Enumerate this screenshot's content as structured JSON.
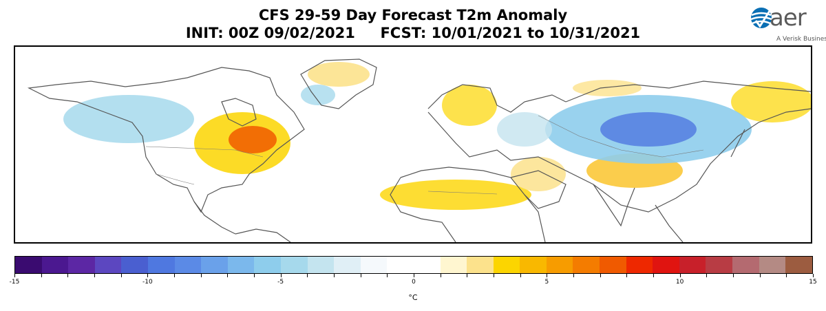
{
  "header": {
    "title_line1": "CFS 29-59 Day Forecast T2m Anomaly",
    "title_line2": "INIT: 00Z 09/02/2021     FCST: 10/01/2021 to 10/31/2021"
  },
  "logo": {
    "wordmark": "aer",
    "tagline": "A Verisk Business",
    "color": "#0a6fb4"
  },
  "colorbar": {
    "unit": "°C",
    "min": -15,
    "max": 15,
    "step": 1,
    "tick_labels": [
      "-15",
      "-10",
      "-5",
      "0",
      "5",
      "10",
      "15"
    ],
    "colors": [
      "#3a0b70",
      "#4b1890",
      "#5c27a4",
      "#5c47c0",
      "#4a5fd0",
      "#4f78e0",
      "#5b8ae6",
      "#6aa1ea",
      "#7bb8ec",
      "#8ecdec",
      "#a6d9ec",
      "#c4e4ef",
      "#e0eff6",
      "#f5f9fc",
      "#ffffff",
      "#ffffff",
      "#fff6d0",
      "#fce28c",
      "#fcd500",
      "#f9b800",
      "#f79c00",
      "#f47c00",
      "#f05a00",
      "#ee2800",
      "#e01410",
      "#c8202a",
      "#b83c44",
      "#b46a70",
      "#b48a84",
      "#9c5c40"
    ]
  },
  "map": {
    "warm_colors": [
      "#fce28c",
      "#fcd500",
      "#f9b800",
      "#f05a00"
    ],
    "cool_colors": [
      "#c4e4ef",
      "#8ecdec",
      "#6aa1ea",
      "#4f78e0"
    ]
  }
}
